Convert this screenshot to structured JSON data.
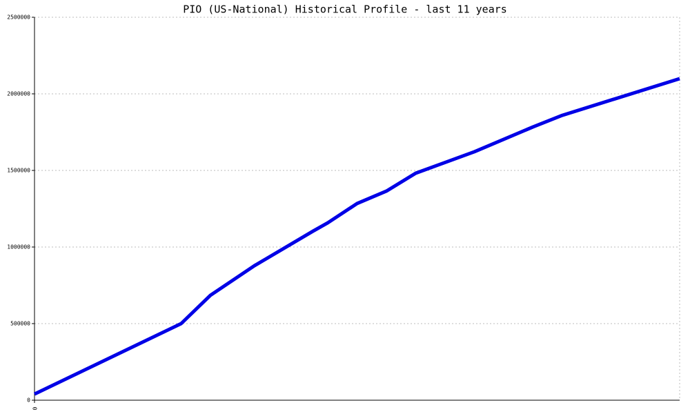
{
  "chart_data": {
    "type": "line",
    "title": "PIO (US-National) Historical Profile - last 11 years",
    "x": [
      0,
      2.5,
      3,
      3.75,
      4.75,
      5,
      5.5,
      6,
      6.5,
      7.5,
      8.5,
      9,
      11
    ],
    "series": [
      {
        "color": "#0000e6",
        "values": [
          40000,
          500000,
          685000,
          878000,
          1104000,
          1158000,
          1284000,
          1365000,
          1482000,
          1622000,
          1784000,
          1860000,
          2099000
        ]
      }
    ],
    "xlim": [
      0,
      11
    ],
    "xticks": [
      0
    ],
    "ylim": [
      0,
      2500000
    ],
    "yticks": [
      0,
      500000,
      1000000,
      1500000,
      2000000,
      2500000
    ],
    "grid": true
  }
}
